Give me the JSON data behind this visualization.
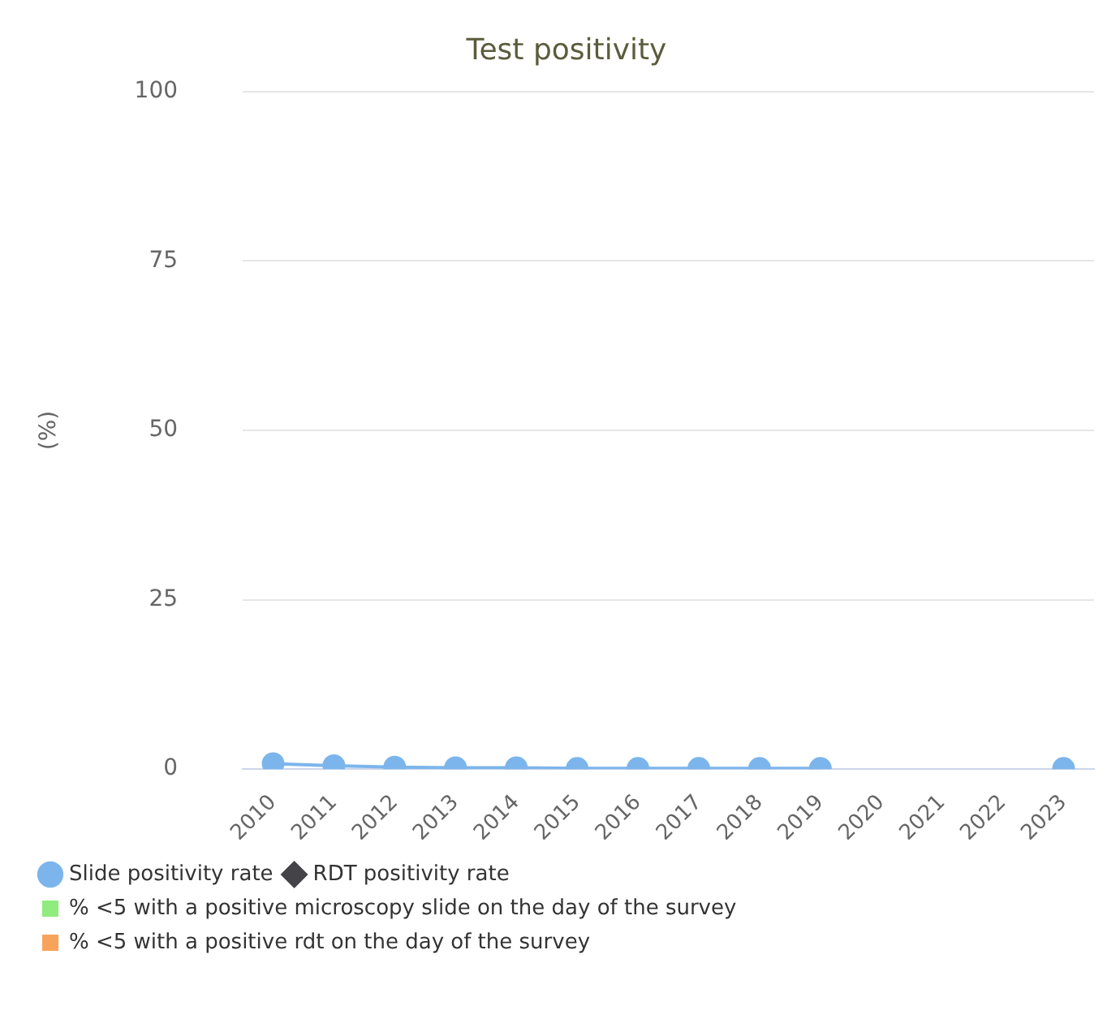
{
  "chart_data": {
    "type": "line",
    "title": "Test positivity",
    "ylabel": "(%)",
    "categories": [
      "2010",
      "2011",
      "2012",
      "2013",
      "2014",
      "2015",
      "2016",
      "2017",
      "2018",
      "2019",
      "2020",
      "2021",
      "2022",
      "2023"
    ],
    "series": [
      {
        "name": "Slide positivity rate",
        "marker": "circle",
        "color": "#7cb5ec",
        "values": [
          0.8,
          0.5,
          0.3,
          0.2,
          0.2,
          0.1,
          0.1,
          0.1,
          0.1,
          0.1,
          null,
          null,
          null,
          0.1
        ]
      },
      {
        "name": "RDT positivity rate",
        "marker": "diamond",
        "color": "#434348",
        "values": [
          null,
          null,
          null,
          null,
          null,
          null,
          null,
          null,
          null,
          null,
          null,
          null,
          null,
          null
        ]
      },
      {
        "name": "% <5 with a positive microscopy slide on the day of the survey",
        "type": "bar",
        "color": "#90ed7d",
        "values": [
          null,
          null,
          null,
          null,
          null,
          null,
          null,
          null,
          null,
          null,
          null,
          null,
          null,
          null
        ]
      },
      {
        "name": "% <5 with a positive rdt on the day of the survey",
        "type": "bar",
        "color": "#f7a35c",
        "values": [
          null,
          null,
          null,
          null,
          null,
          null,
          null,
          null,
          null,
          null,
          null,
          null,
          null,
          null
        ]
      }
    ],
    "ylim": [
      0,
      100
    ],
    "yticks": [
      0,
      25,
      50,
      75,
      100
    ],
    "grid": "y",
    "legend": "bottom"
  }
}
